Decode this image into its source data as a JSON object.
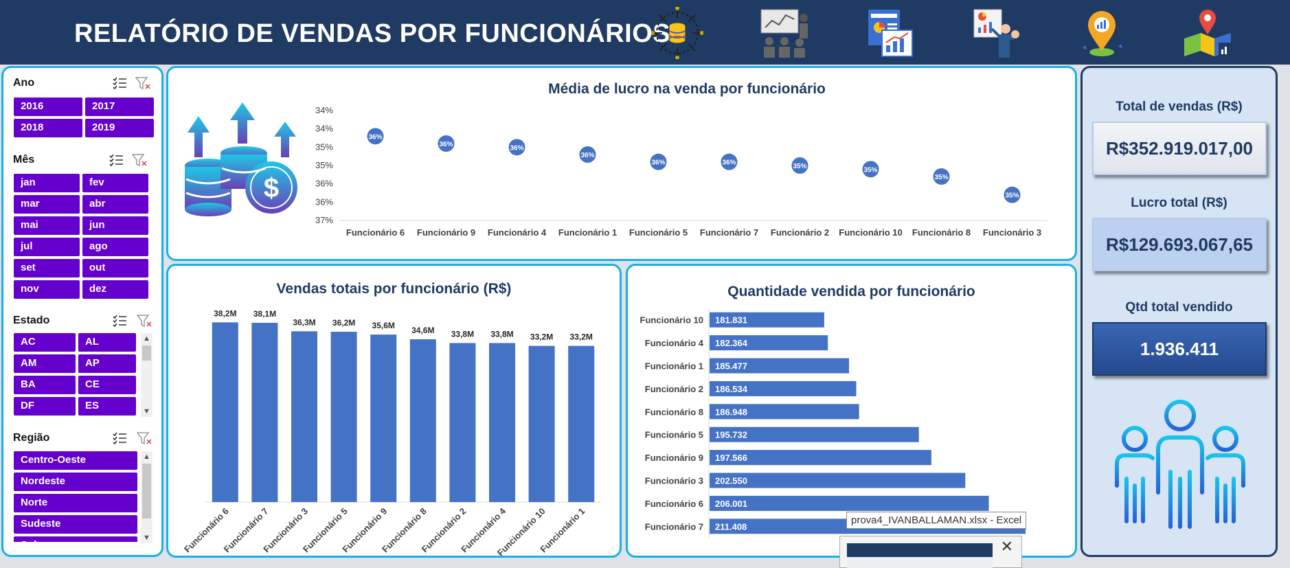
{
  "header": {
    "title": "RELATÓRIO DE VENDAS POR FUNCIONÁRIOS",
    "icons": [
      "database-chip-icon",
      "presentation-meeting-icon",
      "report-chart-icon",
      "presenter-board-icon",
      "location-pin-chart-icon",
      "map-pin-icon"
    ]
  },
  "slicers": {
    "ano": {
      "label": "Ano",
      "items": [
        "2016",
        "2017",
        "2018",
        "2019"
      ]
    },
    "mes": {
      "label": "Mês",
      "items": [
        "jan",
        "fev",
        "mar",
        "abr",
        "mai",
        "jun",
        "jul",
        "ago",
        "set",
        "out",
        "nov",
        "dez"
      ]
    },
    "estado": {
      "label": "Estado",
      "items": [
        "AC",
        "AL",
        "AM",
        "AP",
        "BA",
        "CE",
        "DF",
        "ES"
      ]
    },
    "regiao": {
      "label": "Região",
      "items": [
        "Centro-Oeste",
        "Nordeste",
        "Norte",
        "Sudeste",
        "Sul"
      ]
    }
  },
  "kpis": {
    "vendas_label": "Total de vendas (R$)",
    "vendas_value": "R$352.919.017,00",
    "lucro_label": "Lucro total (R$)",
    "lucro_value": "R$129.693.067,65",
    "qtd_label": "Qtd total vendido",
    "qtd_value": "1.936.411"
  },
  "colors": {
    "accent": "#4472c4",
    "slicer": "#6600cc",
    "header": "#1f3a63",
    "border": "#18b0e6"
  },
  "chart_data": [
    {
      "type": "scatter",
      "title": "Média de lucro na venda por funcionário",
      "categories": [
        "Funcionário 6",
        "Funcionário 9",
        "Funcionário 4",
        "Funcionário 1",
        "Funcionário 5",
        "Funcionário 7",
        "Funcionário 2",
        "Funcionário 10",
        "Funcionário 8",
        "Funcionário 3"
      ],
      "values": [
        36.3,
        36.1,
        36.0,
        35.8,
        35.6,
        35.6,
        35.5,
        35.4,
        35.2,
        34.7
      ],
      "labels": [
        "36%",
        "36%",
        "36%",
        "36%",
        "36%",
        "36%",
        "35%",
        "35%",
        "35%",
        "35%"
      ],
      "yticks": [
        "37%",
        "36%",
        "36%",
        "35%",
        "35%",
        "34%",
        "34%"
      ],
      "ylim": [
        34.0,
        37.0
      ]
    },
    {
      "type": "bar",
      "title": "Vendas totais por funcionário (R$)",
      "categories": [
        "Funcionário 6",
        "Funcionário 7",
        "Funcionário 3",
        "Funcionário 5",
        "Funcionário 9",
        "Funcionário 8",
        "Funcionário 2",
        "Funcionário 4",
        "Funcionário 10",
        "Funcionário 1"
      ],
      "values": [
        38.2,
        38.1,
        36.3,
        36.2,
        35.6,
        34.6,
        33.8,
        33.8,
        33.2,
        33.2
      ],
      "labels": [
        "38,2M",
        "38,1M",
        "36,3M",
        "36,2M",
        "35,6M",
        "34,6M",
        "33,8M",
        "33,8M",
        "33,2M",
        "33,2M"
      ],
      "ylim": [
        0,
        40
      ]
    },
    {
      "type": "bar",
      "orientation": "horizontal",
      "title": "Quantidade vendida por funcionário",
      "categories": [
        "Funcionário 10",
        "Funcionário 4",
        "Funcionário 1",
        "Funcionário 2",
        "Funcionário 8",
        "Funcionário 5",
        "Funcionário 9",
        "Funcionário 3",
        "Funcionário 6",
        "Funcionário 7"
      ],
      "values": [
        181831,
        182364,
        185477,
        186534,
        186948,
        195732,
        197566,
        202550,
        206001,
        211408
      ],
      "labels": [
        "181.831",
        "182.364",
        "185.477",
        "186.534",
        "186.948",
        "195.732",
        "197.566",
        "202.550",
        "206.001",
        "211.408"
      ],
      "xlim": [
        165000,
        212000
      ]
    }
  ],
  "taskbar": {
    "tooltip": "prova4_IVANBALLAMAN.xlsx - Excel"
  }
}
